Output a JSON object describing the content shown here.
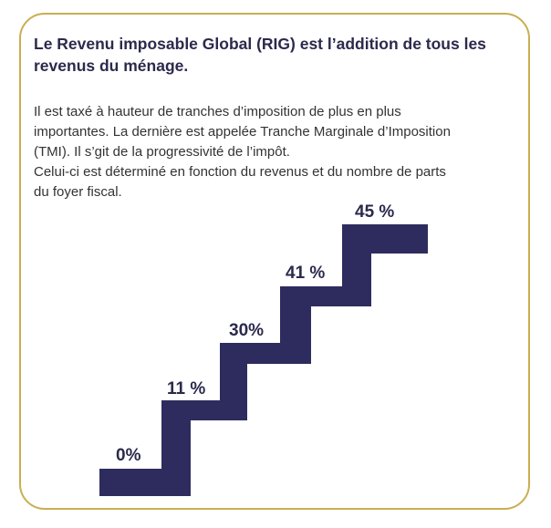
{
  "heading": "Le Revenu imposable Global (RIG) est l’addition de tous les revenus du ménage.",
  "paragraph_lines": [
    "Il est taxé à hauteur de tranches d’imposition de plus en plus",
    "importantes. La dernière est appelée Tranche Marginale d’Imposition",
    "(TMI). Il s’git de la progressivité de l’impôt.",
    "Celui-ci est déterminé en fonction du revenus et du nombre de parts",
    "du foyer fiscal."
  ],
  "steps": [
    {
      "label": "0%"
    },
    {
      "label": "11 %"
    },
    {
      "label": "30%"
    },
    {
      "label": "41 %"
    },
    {
      "label": "45 %"
    }
  ],
  "colors": {
    "border": "#c9ae52",
    "stairs": "#2e2c5e",
    "text_dark": "#2b2a4c"
  }
}
